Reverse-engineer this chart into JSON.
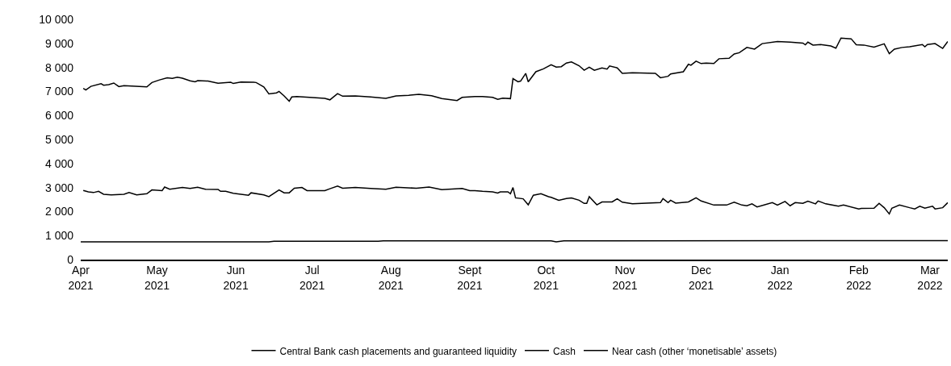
{
  "chart_data": {
    "type": "line",
    "grid": false,
    "legend": "bottom",
    "marker": "none",
    "line_style": "solid",
    "xlim": [
      "2021-04-01",
      "2022-03-08"
    ],
    "xticks": [
      {
        "value": "2021-04-01",
        "label": "Apr 2021"
      },
      {
        "value": "2021-05-01",
        "label": "May 2021"
      },
      {
        "value": "2021-06-01",
        "label": "Jun 2021"
      },
      {
        "value": "2021-07-01",
        "label": "Jul 2021"
      },
      {
        "value": "2021-08-01",
        "label": "Aug 2021"
      },
      {
        "value": "2021-09-01",
        "label": "Sept 2021"
      },
      {
        "value": "2021-10-01",
        "label": "Oct 2021"
      },
      {
        "value": "2021-11-01",
        "label": "Nov 2021"
      },
      {
        "value": "2021-12-01",
        "label": "Dec 2021"
      },
      {
        "value": "2022-01-01",
        "label": "Jan 2022"
      },
      {
        "value": "2022-02-01",
        "label": "Feb 2022"
      },
      {
        "value": "2022-03-01",
        "label": "Mar 2022"
      }
    ],
    "ylim": [
      0,
      10000
    ],
    "yticks": [
      0,
      {
        "value": 1000,
        "label": "1 000"
      },
      {
        "value": 2000,
        "label": "2 000"
      },
      {
        "value": 3000,
        "label": "3 000"
      },
      {
        "value": 4000,
        "label": "4 000"
      },
      {
        "value": 5000,
        "label": "5 000"
      },
      {
        "value": 6000,
        "label": "6 000"
      },
      {
        "value": 7000,
        "label": "7 000"
      },
      {
        "value": 8000,
        "label": "8 000"
      },
      {
        "value": 9000,
        "label": "9 000"
      },
      {
        "value": 10000,
        "label": "10 000"
      }
    ],
    "series": [
      {
        "name": "Central Bank cash placements and guaranteed liquidity",
        "color": "#000000",
        "x": [
          "2021-04-02",
          "2021-04-03",
          "2021-04-05",
          "2021-04-09",
          "2021-04-10",
          "2021-04-12",
          "2021-04-14",
          "2021-04-16",
          "2021-04-18",
          "2021-04-27",
          "2021-04-29",
          "2021-05-02",
          "2021-05-05",
          "2021-05-07",
          "2021-05-09",
          "2021-05-11",
          "2021-05-14",
          "2021-05-16",
          "2021-05-17",
          "2021-05-21",
          "2021-05-25",
          "2021-05-30",
          "2021-05-31",
          "2021-06-03",
          "2021-06-08",
          "2021-06-09",
          "2021-06-12",
          "2021-06-14",
          "2021-06-17",
          "2021-06-18",
          "2021-06-20",
          "2021-06-22",
          "2021-06-23",
          "2021-06-25",
          "2021-06-30",
          "2021-07-06",
          "2021-07-08",
          "2021-07-11",
          "2021-07-13",
          "2021-07-18",
          "2021-07-24",
          "2021-07-30",
          "2021-08-03",
          "2021-08-08",
          "2021-08-12",
          "2021-08-17",
          "2021-08-21",
          "2021-08-27",
          "2021-08-29",
          "2021-09-03",
          "2021-09-06",
          "2021-09-10",
          "2021-09-12",
          "2021-09-14",
          "2021-09-17",
          "2021-09-18",
          "2021-09-20",
          "2021-09-21",
          "2021-09-23",
          "2021-09-24",
          "2021-09-27",
          "2021-09-30",
          "2021-10-03",
          "2021-10-05",
          "2021-10-07",
          "2021-10-09",
          "2021-10-11",
          "2021-10-14",
          "2021-10-16",
          "2021-10-18",
          "2021-10-20",
          "2021-10-23",
          "2021-10-25",
          "2021-10-26",
          "2021-10-29",
          "2021-10-31",
          "2021-11-04",
          "2021-11-13",
          "2021-11-15",
          "2021-11-18",
          "2021-11-19",
          "2021-11-24",
          "2021-11-26",
          "2021-11-27",
          "2021-11-29",
          "2021-12-01",
          "2021-12-03",
          "2021-12-06",
          "2021-12-08",
          "2021-12-12",
          "2021-12-14",
          "2021-12-16",
          "2021-12-19",
          "2021-12-22",
          "2021-12-25",
          "2021-12-31",
          "2022-01-05",
          "2022-01-10",
          "2022-01-11",
          "2022-01-12",
          "2022-01-14",
          "2022-01-17",
          "2022-01-21",
          "2022-01-23",
          "2022-01-25",
          "2022-01-29",
          "2022-01-31",
          "2022-02-03",
          "2022-02-07",
          "2022-02-11",
          "2022-02-13",
          "2022-02-15",
          "2022-02-18",
          "2022-02-21",
          "2022-02-26",
          "2022-02-27",
          "2022-02-28",
          "2022-03-03",
          "2022-03-06",
          "2022-03-08"
        ],
        "values": [
          7130,
          7060,
          7210,
          7320,
          7260,
          7280,
          7350,
          7200,
          7240,
          7190,
          7370,
          7480,
          7570,
          7540,
          7590,
          7550,
          7440,
          7400,
          7450,
          7430,
          7340,
          7380,
          7330,
          7390,
          7380,
          7370,
          7190,
          6900,
          6940,
          7000,
          6810,
          6590,
          6770,
          6790,
          6750,
          6710,
          6650,
          6910,
          6800,
          6810,
          6770,
          6710,
          6810,
          6840,
          6880,
          6820,
          6700,
          6620,
          6750,
          6790,
          6790,
          6750,
          6670,
          6720,
          6700,
          7530,
          7400,
          7430,
          7750,
          7400,
          7820,
          7940,
          8110,
          8010,
          8030,
          8180,
          8230,
          8070,
          7880,
          8010,
          7880,
          7980,
          7930,
          8060,
          7980,
          7750,
          7780,
          7750,
          7570,
          7630,
          7730,
          7820,
          8130,
          8090,
          8260,
          8160,
          8180,
          8160,
          8360,
          8380,
          8560,
          8610,
          8830,
          8760,
          8990,
          9080,
          9050,
          9010,
          8940,
          9050,
          8930,
          8950,
          8890,
          8800,
          9220,
          9190,
          8940,
          8930,
          8840,
          8980,
          8570,
          8760,
          8830,
          8860,
          8950,
          8860,
          8950,
          8990,
          8790,
          9080
        ]
      },
      {
        "name": "Cash",
        "color": "#000000",
        "x": [
          "2021-04-02",
          "2021-04-04",
          "2021-04-06",
          "2021-04-08",
          "2021-04-10",
          "2021-04-13",
          "2021-04-18",
          "2021-04-20",
          "2021-04-23",
          "2021-04-27",
          "2021-04-29",
          "2021-05-03",
          "2021-05-04",
          "2021-05-06",
          "2021-05-11",
          "2021-05-14",
          "2021-05-17",
          "2021-05-20",
          "2021-05-25",
          "2021-05-26",
          "2021-05-28",
          "2021-05-31",
          "2021-06-06",
          "2021-06-07",
          "2021-06-12",
          "2021-06-14",
          "2021-06-18",
          "2021-06-20",
          "2021-06-22",
          "2021-06-24",
          "2021-06-27",
          "2021-06-29",
          "2021-07-06",
          "2021-07-08",
          "2021-07-11",
          "2021-07-13",
          "2021-07-18",
          "2021-07-24",
          "2021-07-30",
          "2021-08-03",
          "2021-08-11",
          "2021-08-16",
          "2021-08-21",
          "2021-08-29",
          "2021-09-01",
          "2021-09-03",
          "2021-09-06",
          "2021-09-10",
          "2021-09-12",
          "2021-09-13",
          "2021-09-16",
          "2021-09-17",
          "2021-09-18",
          "2021-09-19",
          "2021-09-22",
          "2021-09-24",
          "2021-09-26",
          "2021-09-29",
          "2021-10-02",
          "2021-10-03",
          "2021-10-06",
          "2021-10-09",
          "2021-10-11",
          "2021-10-14",
          "2021-10-16",
          "2021-10-17",
          "2021-10-18",
          "2021-10-21",
          "2021-10-23",
          "2021-10-27",
          "2021-10-29",
          "2021-10-31",
          "2021-11-04",
          "2021-11-15",
          "2021-11-16",
          "2021-11-18",
          "2021-11-19",
          "2021-11-21",
          "2021-11-26",
          "2021-11-29",
          "2021-12-01",
          "2021-12-06",
          "2021-12-11",
          "2021-12-14",
          "2021-12-17",
          "2021-12-19",
          "2021-12-21",
          "2021-12-23",
          "2021-12-29",
          "2021-12-31",
          "2022-01-03",
          "2022-01-05",
          "2022-01-07",
          "2022-01-10",
          "2022-01-12",
          "2022-01-15",
          "2022-01-16",
          "2022-01-19",
          "2022-01-24",
          "2022-01-26",
          "2022-02-01",
          "2022-02-02",
          "2022-02-07",
          "2022-02-09",
          "2022-02-11",
          "2022-02-13",
          "2022-02-14",
          "2022-02-17",
          "2022-02-21",
          "2022-02-23",
          "2022-02-25",
          "2022-02-27",
          "2022-03-02",
          "2022-03-03",
          "2022-03-06",
          "2022-03-08"
        ],
        "values": [
          2880,
          2820,
          2790,
          2840,
          2720,
          2690,
          2720,
          2790,
          2690,
          2740,
          2900,
          2870,
          3020,
          2930,
          3000,
          2960,
          3010,
          2930,
          2920,
          2840,
          2840,
          2760,
          2680,
          2780,
          2690,
          2620,
          2900,
          2780,
          2780,
          2970,
          3000,
          2870,
          2870,
          2950,
          3060,
          2970,
          3000,
          2960,
          2930,
          3010,
          2970,
          3020,
          2910,
          2960,
          2870,
          2870,
          2840,
          2820,
          2770,
          2820,
          2820,
          2740,
          3000,
          2570,
          2530,
          2280,
          2680,
          2740,
          2620,
          2590,
          2470,
          2540,
          2570,
          2470,
          2340,
          2340,
          2620,
          2280,
          2400,
          2400,
          2530,
          2390,
          2320,
          2370,
          2540,
          2370,
          2470,
          2350,
          2400,
          2570,
          2440,
          2270,
          2270,
          2390,
          2270,
          2240,
          2320,
          2190,
          2370,
          2270,
          2420,
          2240,
          2370,
          2340,
          2430,
          2320,
          2440,
          2320,
          2220,
          2270,
          2110,
          2130,
          2140,
          2340,
          2160,
          1900,
          2140,
          2270,
          2160,
          2110,
          2220,
          2140,
          2220,
          2110,
          2160,
          2370
        ]
      },
      {
        "name": "Near cash (other ‘monetisable’ assets)",
        "color": "#000000",
        "x": [
          "2021-04-01",
          "2021-06-14",
          "2021-06-16",
          "2021-07-27",
          "2021-07-29",
          "2021-10-03",
          "2021-10-05",
          "2021-10-08",
          "2022-03-08"
        ],
        "values": [
          740,
          740,
          760,
          760,
          780,
          780,
          740,
          780,
          790
        ]
      }
    ]
  }
}
